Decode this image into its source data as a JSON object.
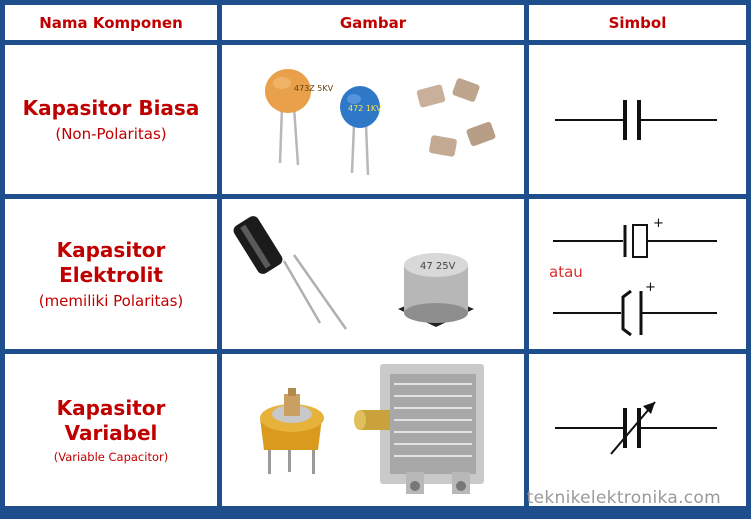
{
  "header": {
    "col_name": "Nama Komponen",
    "col_image": "Gambar",
    "col_symbol": "Simbol"
  },
  "rows": [
    {
      "title_line1": "Kapasitor Biasa",
      "title_line2": "",
      "subtitle": "(Non-Polaritas)",
      "capacitor_labels": {
        "ceramic_orange": "473Z 5KV",
        "ceramic_blue": "472 1KV"
      }
    },
    {
      "title_line1": "Kapasitor",
      "title_line2": "Elektrolit",
      "subtitle": "(memiliki Polaritas)",
      "symbol_plus_1": "+",
      "symbol_or": "atau",
      "symbol_plus_2": "+",
      "capacitor_labels": {
        "smd_electrolytic": "47 25V"
      }
    },
    {
      "title_line1": "Kapasitor",
      "title_line2": "Variabel",
      "subtitle": "(Variable Capacitor)"
    }
  ],
  "watermark": "teknikelektronika.com",
  "colors": {
    "border": "#1f4e8c",
    "title_red": "#c00000"
  }
}
